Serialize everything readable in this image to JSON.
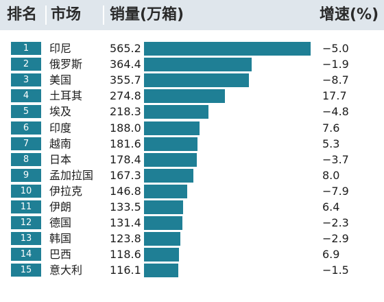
{
  "header": {
    "rank": "排名",
    "market": "市场",
    "sales": "销量(万箱)",
    "growth": "增速(%)"
  },
  "colors": {
    "bar": "#1f7f95",
    "header_bg": "#dfe6ec"
  },
  "chart_data": {
    "type": "bar",
    "orientation": "horizontal",
    "categories": [
      "印尼",
      "俄罗斯",
      "美国",
      "土耳其",
      "埃及",
      "印度",
      "越南",
      "日本",
      "孟加拉国",
      "伊拉克",
      "伊朗",
      "德国",
      "韩国",
      "巴西",
      "意大利"
    ],
    "ranks": [
      "1",
      "2",
      "3",
      "4",
      "5",
      "6",
      "7",
      "8",
      "9",
      "10",
      "11",
      "12",
      "13",
      "14",
      "15"
    ],
    "values": [
      "565.2",
      "364.4",
      "355.7",
      "274.8",
      "218.3",
      "188.0",
      "181.6",
      "178.4",
      "167.3",
      "146.8",
      "133.5",
      "131.4",
      "123.8",
      "118.6",
      "116.1"
    ],
    "growth": [
      "−5.0",
      "−1.9",
      "−8.7",
      "17.7",
      "−4.8",
      "7.6",
      "5.3",
      "−3.7",
      "8.0",
      "−7.9",
      "6.4",
      "−2.3",
      "−2.9",
      "6.9",
      "−1.5"
    ],
    "ylabel": "销量(万箱)",
    "xlim": [
      0,
      565.2
    ]
  }
}
